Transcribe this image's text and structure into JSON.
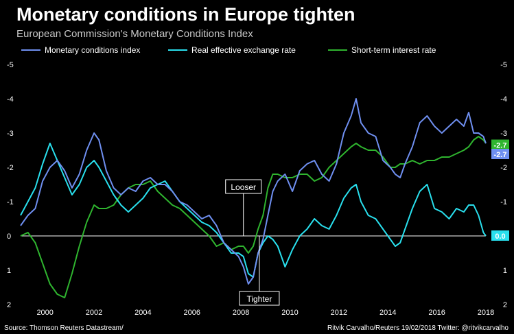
{
  "header": {
    "title": "Monetary conditions in Europe tighten",
    "subtitle": "European Commission's Monetary Conditions Index"
  },
  "footer": {
    "source": "Source: Thomson Reuters Datastream/",
    "credit": "Ritvik Carvalho/Reuters 19/02/2018 Twitter: @ritvikcarvalho"
  },
  "colors": {
    "mci": "#6f8ff0",
    "reer": "#29e0ee",
    "rate": "#2fb52f",
    "zero_line": "#ffffff"
  },
  "chart_data": {
    "type": "line",
    "x_ticks": [
      "2000",
      "2002",
      "2004",
      "2006",
      "2008",
      "2010",
      "2012",
      "2014",
      "2016",
      "2018"
    ],
    "y_ticks": [
      "-5",
      "-4",
      "-3",
      "-2",
      "-1",
      "0",
      "1",
      "2"
    ],
    "ylim": [
      -5,
      2
    ],
    "xlim": [
      1999,
      2018
    ],
    "y_inverted": true,
    "grid": false,
    "legend_position": "top",
    "annotations": [
      {
        "text": "Looser",
        "x": 2008.1,
        "y": 0
      },
      {
        "text": "Tighter",
        "x": 2008.75,
        "y": 0
      }
    ],
    "end_labels": [
      {
        "series": "Short-term interest rate",
        "text": "-2.7",
        "y": -2.65
      },
      {
        "series": "Monetary conditions index",
        "text": "-2.7",
        "y": -2.38
      },
      {
        "series": "Real effective exchange rate",
        "text": "0.0",
        "y": 0.0
      }
    ],
    "series": [
      {
        "name": "Monetary conditions index",
        "color": "#6f8ff0",
        "x": [
          1999.0,
          1999.3,
          1999.6,
          1999.9,
          2000.2,
          2000.5,
          2000.8,
          2001.1,
          2001.4,
          2001.7,
          2002.0,
          2002.2,
          2002.5,
          2002.8,
          2003.1,
          2003.4,
          2003.7,
          2004.0,
          2004.3,
          2004.6,
          2004.9,
          2005.2,
          2005.5,
          2005.8,
          2006.1,
          2006.4,
          2006.7,
          2007.0,
          2007.3,
          2007.6,
          2007.9,
          2008.1,
          2008.3,
          2008.5,
          2008.7,
          2008.9,
          2009.1,
          2009.3,
          2009.5,
          2009.8,
          2010.1,
          2010.4,
          2010.7,
          2011.0,
          2011.3,
          2011.6,
          2011.9,
          2012.2,
          2012.5,
          2012.7,
          2012.9,
          2013.2,
          2013.5,
          2013.8,
          2014.1,
          2014.3,
          2014.5,
          2014.7,
          2015.0,
          2015.3,
          2015.6,
          2015.9,
          2016.2,
          2016.5,
          2016.8,
          2017.1,
          2017.3,
          2017.5,
          2017.7,
          2017.9,
          2018.0
        ],
        "y": [
          -0.3,
          -0.6,
          -0.8,
          -1.6,
          -2.0,
          -2.2,
          -1.9,
          -1.4,
          -1.8,
          -2.5,
          -3.0,
          -2.8,
          -1.9,
          -1.4,
          -1.2,
          -1.4,
          -1.3,
          -1.6,
          -1.7,
          -1.5,
          -1.5,
          -1.3,
          -1.0,
          -0.9,
          -0.7,
          -0.5,
          -0.6,
          -0.3,
          0.2,
          0.4,
          0.6,
          0.9,
          1.4,
          1.2,
          0.5,
          0.1,
          -0.6,
          -1.3,
          -1.6,
          -1.8,
          -1.3,
          -1.9,
          -2.1,
          -2.2,
          -1.8,
          -1.6,
          -2.1,
          -3.0,
          -3.5,
          -4.0,
          -3.3,
          -3.0,
          -2.9,
          -2.2,
          -2.0,
          -1.8,
          -1.7,
          -2.1,
          -2.6,
          -3.3,
          -3.5,
          -3.2,
          -3.0,
          -3.2,
          -3.4,
          -3.2,
          -3.6,
          -3.0,
          -3.0,
          -2.9,
          -2.7
        ]
      },
      {
        "name": "Real effective exchange rate",
        "color": "#29e0ee",
        "x": [
          1999.0,
          1999.3,
          1999.6,
          1999.9,
          2000.2,
          2000.5,
          2000.8,
          2001.1,
          2001.4,
          2001.7,
          2002.0,
          2002.2,
          2002.5,
          2002.8,
          2003.1,
          2003.4,
          2003.7,
          2004.0,
          2004.3,
          2004.6,
          2004.9,
          2005.2,
          2005.5,
          2005.8,
          2006.1,
          2006.4,
          2006.7,
          2007.0,
          2007.3,
          2007.6,
          2007.9,
          2008.1,
          2008.3,
          2008.5,
          2008.7,
          2008.9,
          2009.1,
          2009.3,
          2009.5,
          2009.8,
          2010.1,
          2010.4,
          2010.7,
          2011.0,
          2011.3,
          2011.6,
          2011.9,
          2012.2,
          2012.5,
          2012.7,
          2012.9,
          2013.2,
          2013.5,
          2013.8,
          2014.1,
          2014.3,
          2014.5,
          2014.7,
          2015.0,
          2015.3,
          2015.6,
          2015.9,
          2016.2,
          2016.5,
          2016.8,
          2017.1,
          2017.3,
          2017.5,
          2017.7,
          2017.9,
          2018.0
        ],
        "y": [
          -0.6,
          -1.0,
          -1.4,
          -2.1,
          -2.7,
          -2.2,
          -1.7,
          -1.2,
          -1.5,
          -2.0,
          -2.2,
          -2.0,
          -1.6,
          -1.2,
          -0.9,
          -0.7,
          -0.9,
          -1.1,
          -1.4,
          -1.5,
          -1.6,
          -1.3,
          -1.0,
          -0.8,
          -0.6,
          -0.4,
          -0.3,
          -0.1,
          0.2,
          0.5,
          0.5,
          0.6,
          1.1,
          1.2,
          0.5,
          0.2,
          0.0,
          0.1,
          0.3,
          0.9,
          0.4,
          0.0,
          -0.2,
          -0.5,
          -0.3,
          -0.2,
          -0.6,
          -1.1,
          -1.4,
          -1.5,
          -1.0,
          -0.6,
          -0.5,
          -0.2,
          0.1,
          0.3,
          0.2,
          -0.2,
          -0.8,
          -1.3,
          -1.5,
          -0.8,
          -0.7,
          -0.5,
          -0.8,
          -0.7,
          -0.9,
          -0.9,
          -0.6,
          -0.1,
          0.0
        ]
      },
      {
        "name": "Short-term interest rate",
        "color": "#2fb52f",
        "x": [
          1999.0,
          1999.3,
          1999.6,
          1999.9,
          2000.2,
          2000.5,
          2000.8,
          2001.1,
          2001.4,
          2001.7,
          2002.0,
          2002.2,
          2002.5,
          2002.8,
          2003.1,
          2003.4,
          2003.7,
          2004.0,
          2004.3,
          2004.6,
          2004.9,
          2005.2,
          2005.5,
          2005.8,
          2006.1,
          2006.4,
          2006.7,
          2007.0,
          2007.3,
          2007.6,
          2007.9,
          2008.1,
          2008.3,
          2008.5,
          2008.7,
          2008.9,
          2009.1,
          2009.3,
          2009.5,
          2009.8,
          2010.1,
          2010.4,
          2010.7,
          2011.0,
          2011.3,
          2011.6,
          2011.9,
          2012.2,
          2012.5,
          2012.7,
          2012.9,
          2013.2,
          2013.5,
          2013.8,
          2014.1,
          2014.3,
          2014.5,
          2014.7,
          2015.0,
          2015.3,
          2015.6,
          2015.9,
          2016.2,
          2016.5,
          2016.8,
          2017.1,
          2017.3,
          2017.5,
          2017.7,
          2017.9,
          2018.0
        ],
        "y": [
          0.0,
          -0.1,
          0.2,
          0.8,
          1.4,
          1.7,
          1.8,
          1.1,
          0.3,
          -0.4,
          -0.9,
          -0.8,
          -0.8,
          -0.9,
          -1.2,
          -1.4,
          -1.5,
          -1.5,
          -1.6,
          -1.3,
          -1.1,
          -0.9,
          -0.8,
          -0.6,
          -0.4,
          -0.2,
          0.0,
          0.3,
          0.2,
          0.4,
          0.3,
          0.3,
          0.5,
          0.3,
          -0.2,
          -0.6,
          -1.4,
          -1.8,
          -1.8,
          -1.7,
          -1.7,
          -1.8,
          -1.8,
          -1.6,
          -1.7,
          -2.0,
          -2.2,
          -2.4,
          -2.6,
          -2.7,
          -2.6,
          -2.5,
          -2.5,
          -2.3,
          -2.0,
          -2.0,
          -2.1,
          -2.1,
          -2.2,
          -2.1,
          -2.2,
          -2.2,
          -2.3,
          -2.3,
          -2.4,
          -2.5,
          -2.6,
          -2.8,
          -2.9,
          -2.8,
          -2.7
        ]
      }
    ]
  }
}
